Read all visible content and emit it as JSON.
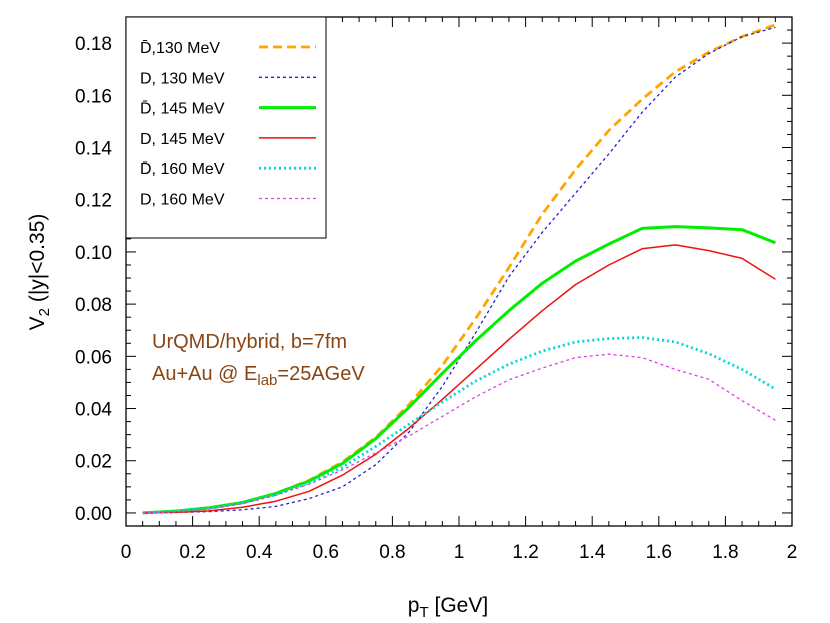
{
  "chart_data": {
    "type": "line",
    "xlabel": {
      "main": "p",
      "sub": "T",
      "rest": " [GeV]"
    },
    "ylabel": {
      "main": "V",
      "sub": "2",
      "rest": " (|y|<0.35)"
    },
    "xlim": [
      0,
      2
    ],
    "ylim": [
      -0.005,
      0.19
    ],
    "x_ticks": [
      0,
      0.2,
      0.4,
      0.6,
      0.8,
      1,
      1.2,
      1.4,
      1.6,
      1.8,
      2
    ],
    "x_tick_labels": [
      "0",
      "0.2",
      "0.4",
      "0.6",
      "0.8",
      "1",
      "1.2",
      "1.4",
      "1.6",
      "1.8",
      "2"
    ],
    "y_ticks": [
      0,
      0.02,
      0.04,
      0.06,
      0.08,
      0.1,
      0.12,
      0.14,
      0.16,
      0.18
    ],
    "y_tick_labels": [
      "0.00",
      "0.02",
      "0.04",
      "0.06",
      "0.08",
      "0.10",
      "0.12",
      "0.14",
      "0.16",
      "0.18"
    ],
    "legend_position": "top-left",
    "annotations": [
      {
        "text": "UrQMD/hybrid, b=7fm"
      },
      {
        "text_main": "Au+Au @ E",
        "text_sub": "lab",
        "text_rest": "=25AGeV"
      }
    ],
    "x": [
      0.05,
      0.15,
      0.25,
      0.35,
      0.45,
      0.55,
      0.65,
      0.75,
      0.85,
      0.95,
      1.05,
      1.15,
      1.25,
      1.35,
      1.45,
      1.55,
      1.65,
      1.75,
      1.85,
      1.95
    ],
    "series": [
      {
        "name": "D̄,130 MeV",
        "color": "#ffa500",
        "style": "dashed",
        "values": [
          0.0,
          0.0007,
          0.002,
          0.004,
          0.0075,
          0.0125,
          0.0195,
          0.029,
          0.0415,
          0.0565,
          0.0745,
          0.094,
          0.1145,
          0.1315,
          0.1465,
          0.1585,
          0.169,
          0.1765,
          0.1825,
          0.187
        ]
      },
      {
        "name": "D, 130 MeV",
        "color": "#2222cc",
        "style": "dotted",
        "values": [
          0.0,
          0.0002,
          0.0005,
          0.0012,
          0.0025,
          0.0055,
          0.01,
          0.0185,
          0.031,
          0.0485,
          0.069,
          0.0905,
          0.1075,
          0.1225,
          0.1375,
          0.1535,
          0.167,
          0.176,
          0.1825,
          0.186
        ]
      },
      {
        "name": "D̄, 145 MeV",
        "color": "#00ee00",
        "style": "thick",
        "values": [
          0.0,
          0.0007,
          0.002,
          0.004,
          0.0075,
          0.0122,
          0.019,
          0.0285,
          0.0405,
          0.0535,
          0.066,
          0.0775,
          0.088,
          0.0965,
          0.103,
          0.109,
          0.1097,
          0.1092,
          0.1085,
          0.1035
        ]
      },
      {
        "name": "D, 145 MeV",
        "color": "#ee1111",
        "style": "solid",
        "values": [
          0.0,
          0.0002,
          0.0008,
          0.0022,
          0.0045,
          0.0083,
          0.0145,
          0.0225,
          0.0325,
          0.0435,
          0.055,
          0.0665,
          0.0775,
          0.0875,
          0.095,
          0.1012,
          0.1027,
          0.1005,
          0.0975,
          0.0895
        ]
      },
      {
        "name": "D̄, 160 MeV",
        "color": "#00d8d8",
        "style": "dotted-thick",
        "values": [
          0.0,
          0.0007,
          0.0018,
          0.0038,
          0.007,
          0.0115,
          0.0175,
          0.0255,
          0.034,
          0.0425,
          0.0505,
          0.057,
          0.062,
          0.0655,
          0.0668,
          0.0672,
          0.0655,
          0.061,
          0.055,
          0.0475
        ]
      },
      {
        "name": "D, 160 MeV",
        "color": "#dd44dd",
        "style": "dotted",
        "values": [
          0.0,
          0.0005,
          0.0015,
          0.0035,
          0.0068,
          0.011,
          0.0165,
          0.023,
          0.0295,
          0.037,
          0.0445,
          0.051,
          0.0555,
          0.0595,
          0.0608,
          0.0595,
          0.055,
          0.0512,
          0.043,
          0.0355
        ]
      }
    ]
  }
}
